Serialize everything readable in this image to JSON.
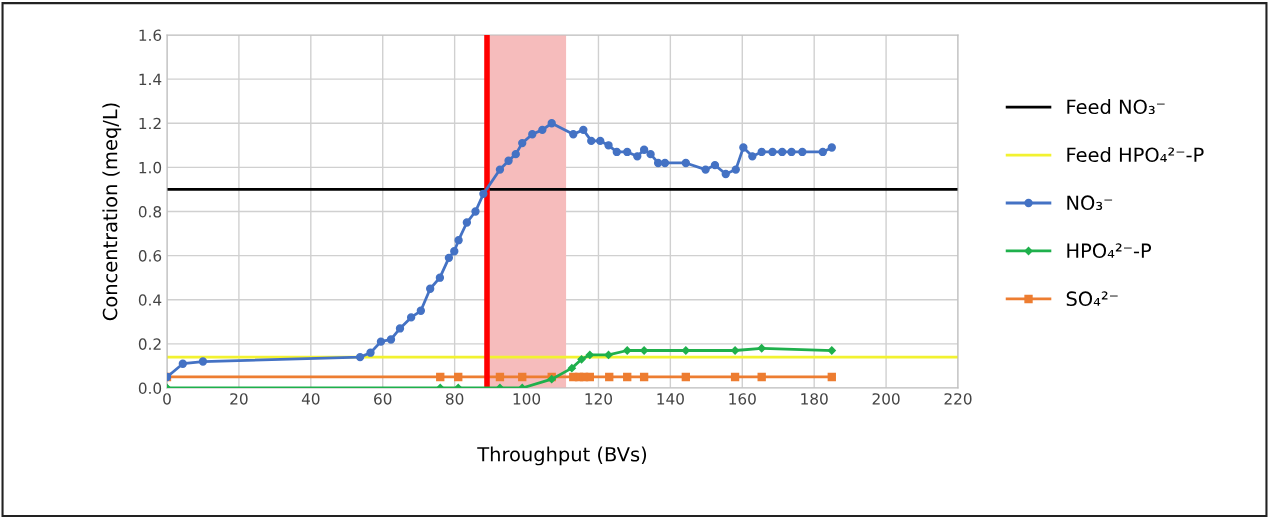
{
  "chart_data": {
    "type": "line",
    "xlabel": "Throughput (BVs)",
    "ylabel": "Concentration (meq/L)",
    "xlim": [
      0,
      220
    ],
    "xticks": [
      0,
      20,
      40,
      60,
      80,
      100,
      120,
      140,
      160,
      180,
      200,
      220
    ],
    "ylim": [
      0,
      1.6
    ],
    "yticks": [
      {
        "value": 0,
        "label": "0.0"
      },
      {
        "value": 0.2,
        "label": "0.2"
      },
      {
        "value": 0.4,
        "label": "0.4"
      },
      {
        "value": 0.6,
        "label": "0.6"
      },
      {
        "value": 0.8,
        "label": "0.8"
      },
      {
        "value": 1.0,
        "label": "1.0"
      },
      {
        "value": 1.2,
        "label": "1.2"
      },
      {
        "value": 1.4,
        "label": "1.4"
      },
      {
        "value": 1.6,
        "label": "1.6"
      }
    ],
    "grid": true,
    "legend": "right",
    "ref_lines": [
      {
        "axis": "y",
        "value": 0.9,
        "label": "Feed NO₃⁻",
        "color": "#000000"
      },
      {
        "axis": "y",
        "value": 0.14,
        "label": "Feed HPO₄²⁻-P",
        "color": "#f2f230"
      },
      {
        "axis": "x",
        "value": 89,
        "color": "#ff0000"
      }
    ],
    "bands": [
      {
        "axis": "x",
        "from": 89,
        "to": 111,
        "color": "#f6bcbc"
      }
    ],
    "series": [
      {
        "name": "NO₃⁻",
        "color": "#4472c4",
        "marker": "circle",
        "x": [
          0,
          4.4,
          10,
          53.7,
          56.6,
          59.5,
          62.3,
          64.8,
          67.9,
          70.6,
          73.2,
          75.9,
          78.4,
          79.9,
          81.1,
          83.4,
          85.8,
          88,
          92.6,
          95,
          97,
          98.8,
          101.6,
          104.4,
          107,
          113,
          115.8,
          118,
          120.5,
          122.8,
          125.1,
          128,
          130.8,
          132.7,
          134.5,
          136.6,
          138.5,
          144.3,
          149.8,
          152.4,
          155.4,
          158.2,
          160.3,
          162.8,
          165.4,
          168.4,
          171.1,
          173.7,
          176.7,
          182.4,
          184.9
        ],
        "values": [
          0.05,
          0.11,
          0.12,
          0.14,
          0.16,
          0.21,
          0.22,
          0.27,
          0.32,
          0.35,
          0.45,
          0.5,
          0.59,
          0.62,
          0.67,
          0.75,
          0.8,
          0.88,
          0.99,
          1.03,
          1.06,
          1.11,
          1.15,
          1.17,
          1.2,
          1.15,
          1.17,
          1.12,
          1.12,
          1.1,
          1.07,
          1.07,
          1.05,
          1.08,
          1.06,
          1.02,
          1.02,
          1.02,
          0.99,
          1.01,
          0.97,
          0.99,
          1.09,
          1.05,
          1.07,
          1.07,
          1.07,
          1.07,
          1.07,
          1.07,
          1.09
        ]
      },
      {
        "name": "HPO₄²⁻-P",
        "color": "#1fb04c",
        "marker": "diamond",
        "x": [
          0,
          76,
          81,
          92.6,
          98.8,
          107,
          112.6,
          115.3,
          117.6,
          122.8,
          128,
          132.7,
          144.3,
          158,
          165.4,
          184.9
        ],
        "values": [
          0,
          0,
          0,
          0,
          0,
          0.04,
          0.09,
          0.13,
          0.15,
          0.15,
          0.17,
          0.17,
          0.17,
          0.17,
          0.18,
          0.17
        ]
      },
      {
        "name": "SO₄²⁻",
        "color": "#ed7d31",
        "marker": "square",
        "x": [
          0,
          76,
          81,
          92.6,
          98.8,
          107,
          113,
          114.6,
          116,
          117.6,
          123,
          128,
          132.7,
          144.3,
          158,
          165.4,
          184.9
        ],
        "values": [
          0.05,
          0.05,
          0.05,
          0.05,
          0.05,
          0.05,
          0.05,
          0.05,
          0.05,
          0.05,
          0.05,
          0.05,
          0.05,
          0.05,
          0.05,
          0.05,
          0.05
        ]
      }
    ]
  }
}
